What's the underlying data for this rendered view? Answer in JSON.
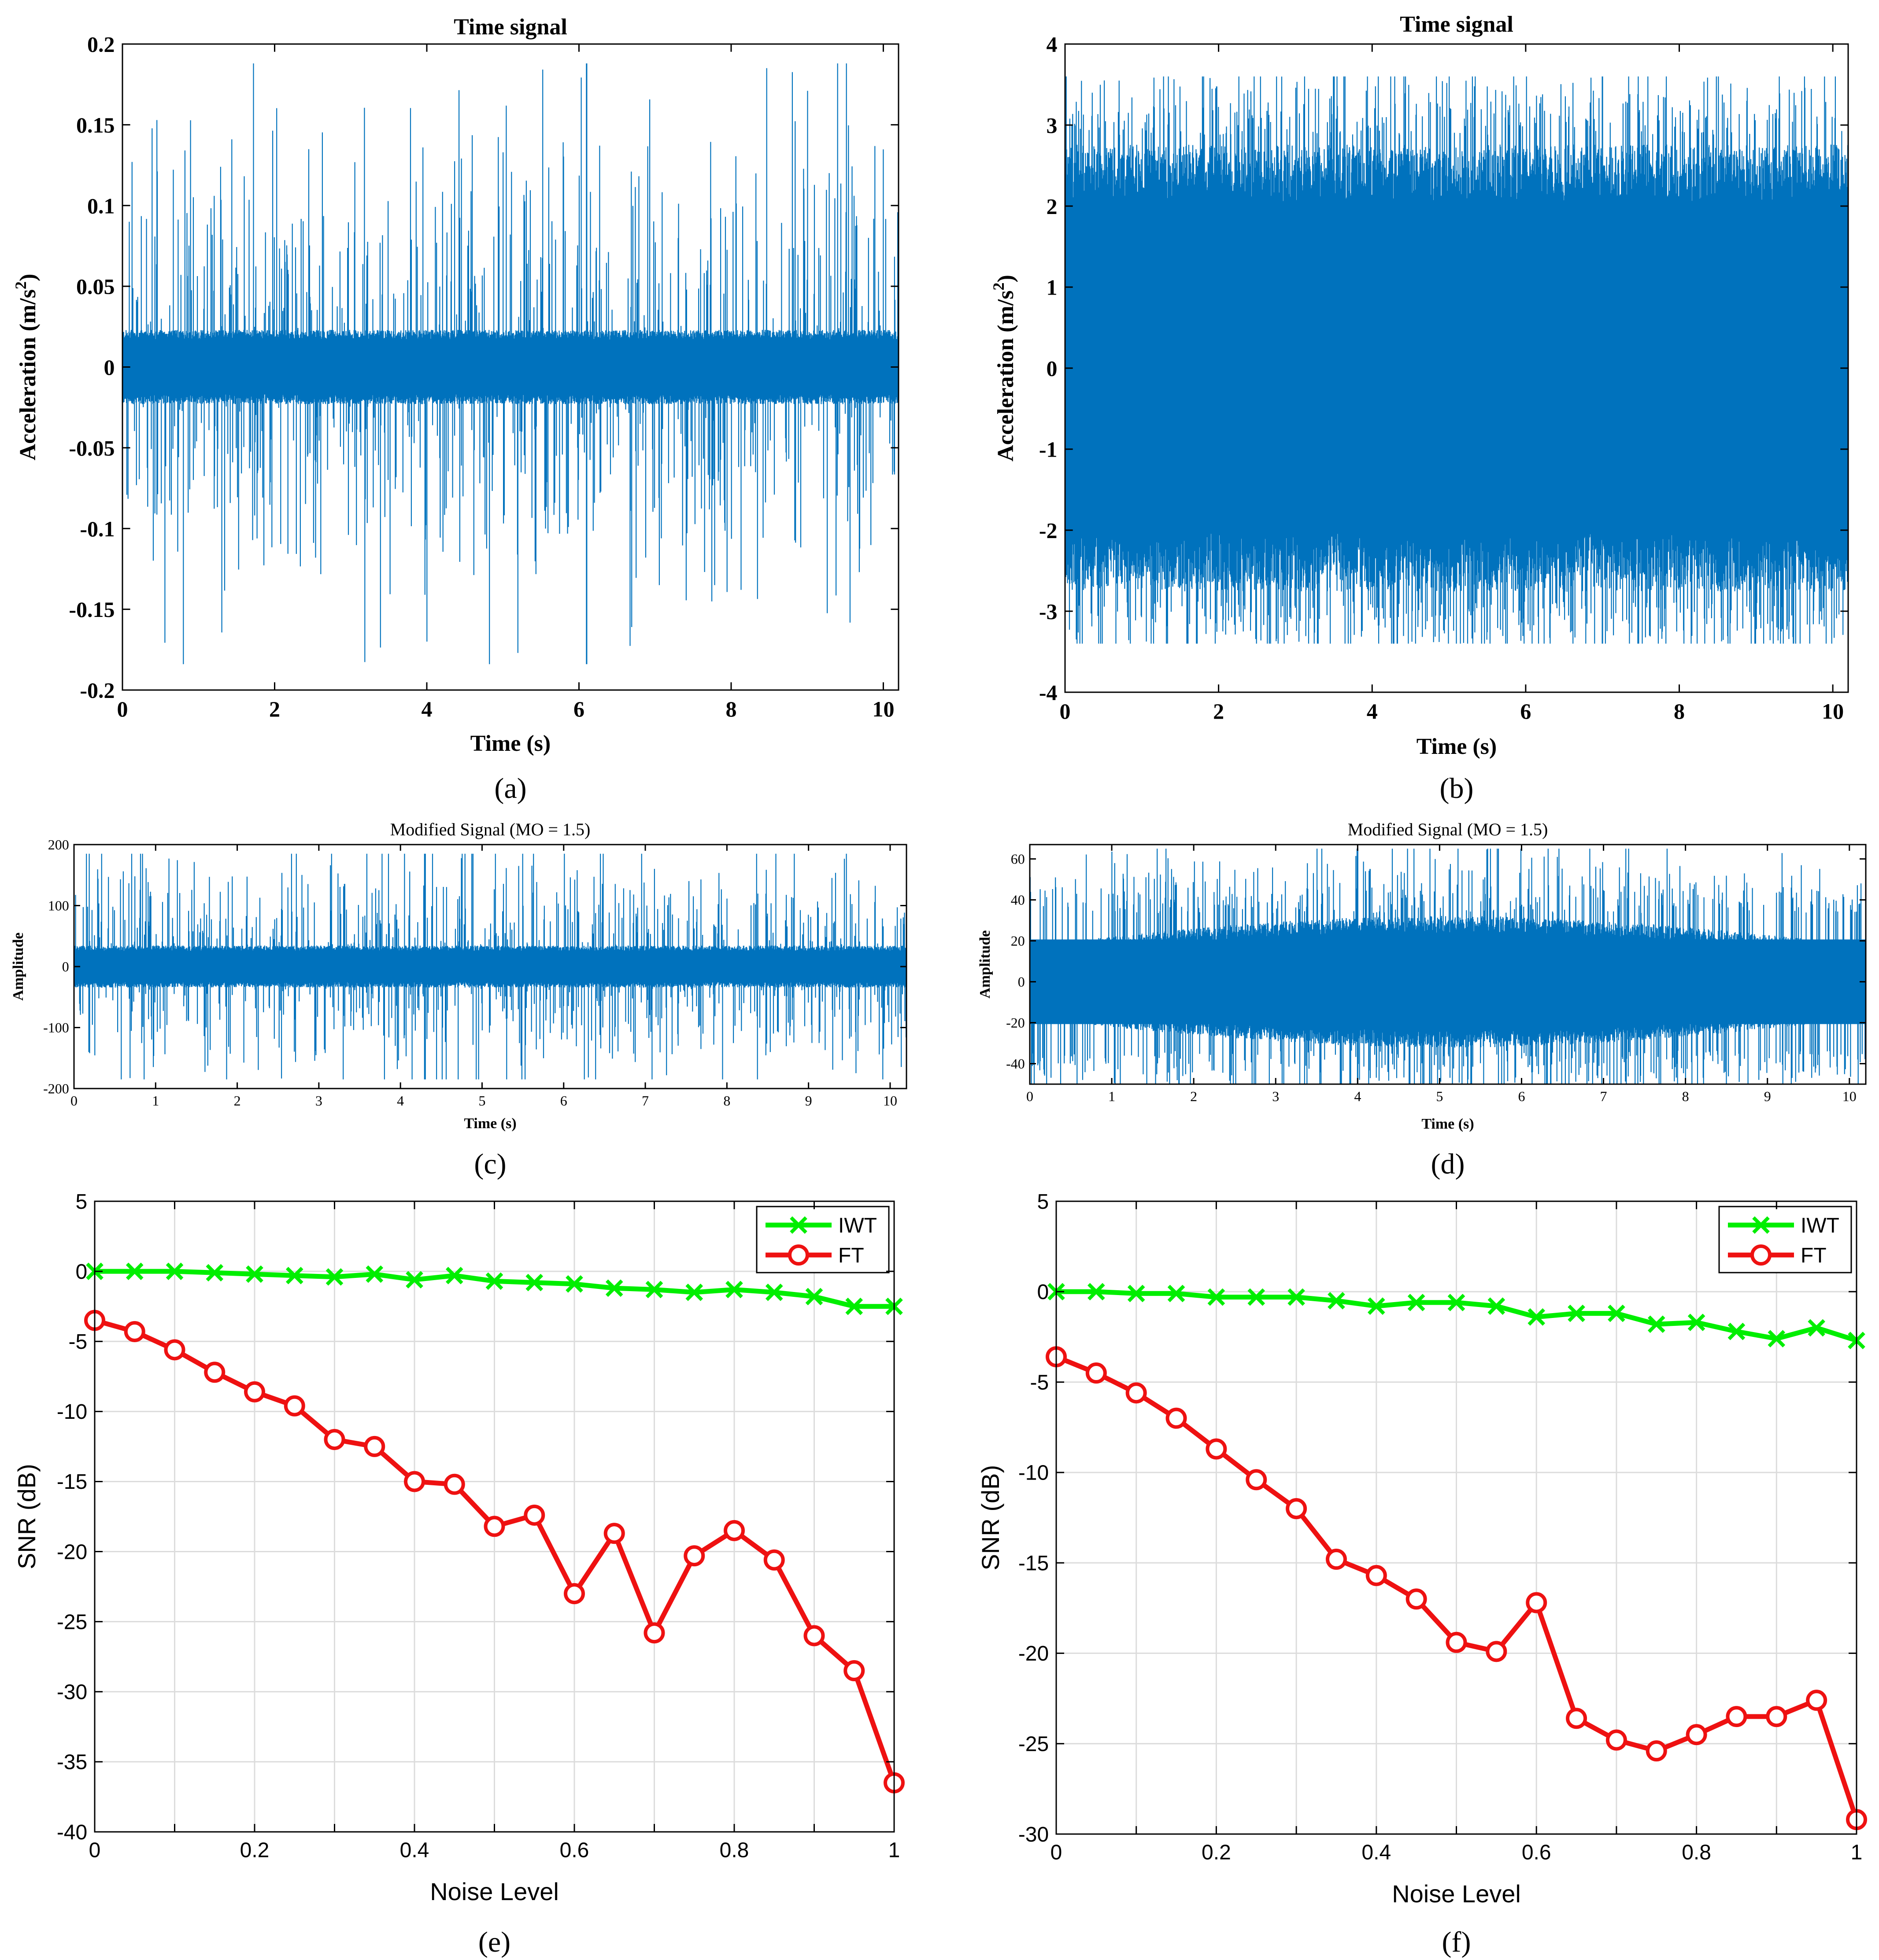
{
  "colors": {
    "signal": "#0072BD",
    "iwt": "#00EE00",
    "ft": "#EE1111",
    "axis": "#000000",
    "grid": "#DCDCDC"
  },
  "chart_data": [
    {
      "id": "a",
      "type": "line",
      "style": "signal",
      "title": "Time signal",
      "xlabel": "Time (s)",
      "ylabel": "Acceleration (m/s",
      "ylabel_sup": "2",
      "ylabel_tail": ")",
      "xlim": [
        0,
        10.2
      ],
      "ylim": [
        -0.2,
        0.2
      ],
      "xticks": [
        0,
        2,
        4,
        6,
        8,
        10
      ],
      "yticks": [
        -0.2,
        -0.15,
        -0.1,
        -0.05,
        0,
        0.05,
        0.1,
        0.15,
        0.2
      ],
      "xtick_labels": [
        "0",
        "2",
        "4",
        "6",
        "8",
        "10"
      ],
      "ytick_labels": [
        "-0.2",
        "-0.15",
        "-0.1",
        "-0.05",
        "0",
        "0.05",
        "0.1",
        "0.15",
        "0.2"
      ],
      "grid": false,
      "signal": {
        "duration": 10.2,
        "core_amplitude": 0.02,
        "spike_amplitude": 0.1,
        "max": 0.188,
        "min": -0.184,
        "peak_time": 6.1,
        "envelope": "flat"
      },
      "caption": "(a)"
    },
    {
      "id": "b",
      "type": "line",
      "style": "signal",
      "title": "Time signal",
      "xlabel": "Time (s)",
      "ylabel": "Acceleration (m/s",
      "ylabel_sup": "2",
      "ylabel_tail": ")",
      "xlim": [
        0,
        10.2
      ],
      "ylim": [
        -4,
        4
      ],
      "xticks": [
        0,
        2,
        4,
        6,
        8,
        10
      ],
      "yticks": [
        -4,
        -3,
        -2,
        -1,
        0,
        1,
        2,
        3,
        4
      ],
      "xtick_labels": [
        "0",
        "2",
        "4",
        "6",
        "8",
        "10"
      ],
      "ytick_labels": [
        "-4",
        "-3",
        "-2",
        "-1",
        "0",
        "1",
        "2",
        "3",
        "4"
      ],
      "grid": false,
      "signal": {
        "duration": 10.2,
        "core_amplitude": 2.4,
        "spike_amplitude": 3.0,
        "max": 3.6,
        "min": -3.4,
        "peak_time": 7.0,
        "envelope": "flat"
      },
      "caption": "(b)"
    },
    {
      "id": "c",
      "type": "line",
      "style": "signal",
      "title": "Modified Signal (MO = 1.5)",
      "xlabel": "Time (s)",
      "ylabel": "Amplitude",
      "xlim": [
        0,
        10.2
      ],
      "ylim": [
        -200,
        200
      ],
      "xticks": [
        0,
        1,
        2,
        3,
        4,
        5,
        6,
        7,
        8,
        9,
        10
      ],
      "yticks": [
        -200,
        -100,
        0,
        100,
        200
      ],
      "xtick_labels": [
        "0",
        "1",
        "2",
        "3",
        "4",
        "5",
        "6",
        "7",
        "8",
        "9",
        "10"
      ],
      "ytick_labels": [
        "-200",
        "-100",
        "0",
        "100",
        "200"
      ],
      "grid": false,
      "signal": {
        "duration": 10.2,
        "core_amplitude": 30,
        "spike_amplitude": 130,
        "max": 185,
        "min": -185,
        "peak_time": 4.3,
        "envelope": "flat"
      },
      "caption": "(c)"
    },
    {
      "id": "d",
      "type": "line",
      "style": "signal",
      "title": "Modified Signal (MO = 1.5)",
      "xlabel": "Time (s)",
      "ylabel": "Amplitude",
      "xlim": [
        0,
        10.2
      ],
      "ylim": [
        -50,
        67
      ],
      "xticks": [
        0,
        1,
        2,
        3,
        4,
        5,
        6,
        7,
        8,
        9,
        10
      ],
      "yticks": [
        -40,
        -20,
        0,
        20,
        40,
        60
      ],
      "xtick_labels": [
        "0",
        "1",
        "2",
        "3",
        "4",
        "5",
        "6",
        "7",
        "8",
        "9",
        "10"
      ],
      "ytick_labels": [
        "-40",
        "-20",
        "0",
        "20",
        "40",
        "60"
      ],
      "grid": false,
      "signal": {
        "duration": 10.2,
        "core_amplitude": 28,
        "spike_amplitude": 50,
        "max": 65,
        "min": -55,
        "peak_time": 4.0,
        "envelope": "bulge"
      },
      "caption": "(d)"
    },
    {
      "id": "e",
      "type": "line",
      "style": "snr",
      "title": "",
      "xlabel": "Noise Level",
      "ylabel": "SNR (dB)",
      "xlim": [
        0,
        1
      ],
      "ylim": [
        -40,
        5
      ],
      "xticks": [
        0,
        0.1,
        0.2,
        0.3,
        0.4,
        0.5,
        0.6,
        0.7,
        0.8,
        0.9,
        1
      ],
      "yticks": [
        -40,
        -35,
        -30,
        -25,
        -20,
        -15,
        -10,
        -5,
        0,
        5
      ],
      "xtick_labels": [
        "0",
        "",
        "0.2",
        "",
        "0.4",
        "",
        "0.6",
        "",
        "0.8",
        "",
        "1"
      ],
      "ytick_labels": [
        "-40",
        "-35",
        "-30",
        "-25",
        "-20",
        "-15",
        "-10",
        "-5",
        "0",
        "5"
      ],
      "grid": true,
      "legend": "top-right",
      "x": [
        0,
        0.05,
        0.1,
        0.15,
        0.2,
        0.25,
        0.3,
        0.35,
        0.4,
        0.45,
        0.5,
        0.55,
        0.6,
        0.65,
        0.7,
        0.75,
        0.8,
        0.85,
        0.9,
        0.95,
        1
      ],
      "series": [
        {
          "name": "IWT",
          "marker": "x",
          "values": [
            0,
            0,
            0,
            -0.1,
            -0.2,
            -0.3,
            -0.4,
            -0.2,
            -0.6,
            -0.3,
            -0.7,
            -0.8,
            -0.9,
            -1.2,
            -1.3,
            -1.5,
            -1.3,
            -1.5,
            -1.8,
            -2.5,
            -2.5
          ]
        },
        {
          "name": "FT",
          "marker": "o",
          "values": [
            -3.5,
            -4.3,
            -5.6,
            -7.2,
            -8.6,
            -9.6,
            -12.0,
            -12.5,
            -15.0,
            -15.2,
            -18.2,
            -17.4,
            -23.0,
            -18.7,
            -25.8,
            -20.3,
            -18.5,
            -20.6,
            -26.0,
            -28.5,
            -36.5
          ]
        }
      ],
      "caption": "(e)"
    },
    {
      "id": "f",
      "type": "line",
      "style": "snr",
      "title": "",
      "xlabel": "Noise Level",
      "ylabel": "SNR (dB)",
      "xlim": [
        0,
        1
      ],
      "ylim": [
        -30,
        5
      ],
      "xticks": [
        0,
        0.1,
        0.2,
        0.3,
        0.4,
        0.5,
        0.6,
        0.7,
        0.8,
        0.9,
        1
      ],
      "yticks": [
        -30,
        -25,
        -20,
        -15,
        -10,
        -5,
        0,
        5
      ],
      "xtick_labels": [
        "0",
        "",
        "0.2",
        "",
        "0.4",
        "",
        "0.6",
        "",
        "0.8",
        "",
        "1"
      ],
      "ytick_labels": [
        "-30",
        "-25",
        "-20",
        "-15",
        "-10",
        "-5",
        "0",
        "5"
      ],
      "grid": true,
      "legend": "top-right",
      "x": [
        0,
        0.05,
        0.1,
        0.15,
        0.2,
        0.25,
        0.3,
        0.35,
        0.4,
        0.45,
        0.5,
        0.55,
        0.6,
        0.65,
        0.7,
        0.75,
        0.8,
        0.85,
        0.9,
        0.95,
        1
      ],
      "series": [
        {
          "name": "IWT",
          "marker": "x",
          "values": [
            0,
            0,
            -0.1,
            -0.1,
            -0.3,
            -0.3,
            -0.3,
            -0.5,
            -0.8,
            -0.6,
            -0.6,
            -0.8,
            -1.4,
            -1.2,
            -1.2,
            -1.8,
            -1.7,
            -2.2,
            -2.6,
            -2.0,
            -2.7
          ]
        },
        {
          "name": "FT",
          "marker": "o",
          "values": [
            -3.6,
            -4.5,
            -5.6,
            -7.0,
            -8.7,
            -10.4,
            -12.0,
            -14.8,
            -15.7,
            -17.0,
            -19.4,
            -19.9,
            -17.2,
            -23.6,
            -24.8,
            -25.4,
            -24.5,
            -23.5,
            -23.5,
            -22.6,
            -29.2
          ]
        }
      ],
      "caption": "(f)"
    }
  ]
}
